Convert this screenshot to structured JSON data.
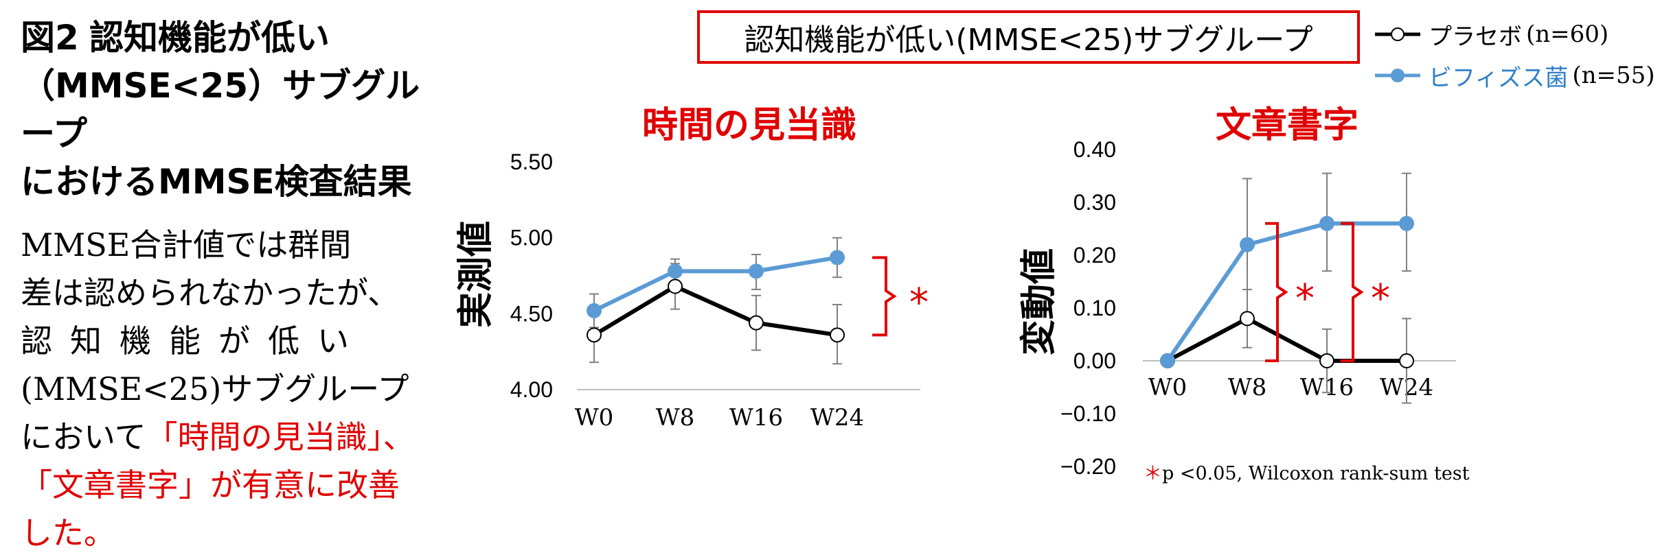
{
  "figure": {
    "title_num": "図2",
    "title_rest": "認知機能が低い",
    "title_line2": "（MMSE<25）サブグループ",
    "title_line3": "におけるMMSE検査結果"
  },
  "summary": {
    "l1": "MMSE合計値では群間",
    "l2": "差は認められなかったが、",
    "l3": "認知機能が低い",
    "l4": "(MMSE<25)サブグループ",
    "l5a": "において",
    "l5b": "「時間の見当識」、",
    "l6a": "「文章書字」",
    "l6b": "が有意に改善",
    "l7": "した。"
  },
  "header_box": "認知機能が低い(MMSE<25)サブグループ",
  "legend": {
    "placebo_label": "プラセボ",
    "placebo_n": "(n=60)",
    "bifido_label": "ビフィズス菌",
    "bifido_n": "(n=55)"
  },
  "colors": {
    "placebo": "#000000",
    "bifido": "#5b9bd5",
    "accent": "#e00000"
  },
  "footnote": {
    "star": "＊",
    "text": "p <0.05, Wilcoxon rank-sum test"
  },
  "chart_data": [
    {
      "type": "line",
      "title": "時間の見当識",
      "ylabel": "実測値",
      "categories": [
        "W0",
        "W8",
        "W16",
        "W24"
      ],
      "ylim": [
        4.0,
        5.5
      ],
      "yticks": [
        "4.00",
        "4.50",
        "5.00",
        "5.50"
      ],
      "series": [
        {
          "name": "プラセボ",
          "values": [
            4.36,
            4.68,
            4.44,
            4.36
          ],
          "err_low": [
            4.18,
            4.53,
            4.26,
            4.17
          ],
          "err_high": [
            4.54,
            4.83,
            4.62,
            4.56
          ]
        },
        {
          "name": "ビフィズス菌",
          "values": [
            4.52,
            4.78,
            4.78,
            4.87
          ],
          "err_low": [
            4.41,
            4.7,
            4.66,
            4.74
          ],
          "err_high": [
            4.63,
            4.86,
            4.89,
            5.0
          ]
        }
      ],
      "significance": [
        {
          "label": "*",
          "from": 4.36,
          "to": 4.87,
          "at": "W24"
        }
      ]
    },
    {
      "type": "line",
      "title": "文章書字",
      "ylabel": "変動値",
      "categories": [
        "W0",
        "W8",
        "W16",
        "W24"
      ],
      "ylim": [
        -0.2,
        0.4
      ],
      "yticks": [
        "−0.20",
        "−0.10",
        "0.00",
        "0.10",
        "0.20",
        "0.30",
        "0.40"
      ],
      "series": [
        {
          "name": "プラセボ",
          "values": [
            0.0,
            0.08,
            0.0,
            0.0
          ],
          "err_low": [
            0.0,
            0.025,
            -0.06,
            -0.08
          ],
          "err_high": [
            0.0,
            0.135,
            0.06,
            0.08
          ]
        },
        {
          "name": "ビフィズス菌",
          "values": [
            0.0,
            0.22,
            0.26,
            0.26
          ],
          "err_low": [
            0.0,
            0.09,
            0.17,
            0.17
          ],
          "err_high": [
            0.0,
            0.345,
            0.355,
            0.355
          ]
        }
      ],
      "significance": [
        {
          "label": "*",
          "from": 0.0,
          "to": 0.26,
          "at": "W16"
        },
        {
          "label": "*",
          "from": 0.0,
          "to": 0.26,
          "at": "W24"
        }
      ]
    }
  ]
}
